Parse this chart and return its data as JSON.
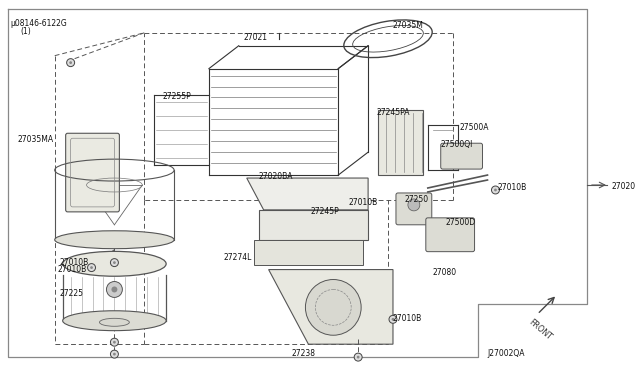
{
  "bg_color": "#ffffff",
  "line_color": "#333333",
  "dashed_color": "#555555",
  "text_color": "#111111",
  "diagram_id": "J27002QA",
  "figsize": [
    6.4,
    3.72
  ],
  "dpi": 100,
  "labels": {
    "bolt": "µ08146-6122G",
    "bolt_sub": "(1)",
    "27021": "27021",
    "27035M": "27035M",
    "27255P": "27255P",
    "27035MA": "27035MA",
    "27245PA": "27245PA",
    "27500A": "27500A",
    "27020BA": "27020BA",
    "27245P": "27245P",
    "27274L": "27274L",
    "27250": "27250",
    "27010B_1": "27010B",
    "27010B_2": "27010B",
    "27010B_3": "27010B",
    "27010B_4": "27010B",
    "27238": "27238",
    "27225": "27225",
    "27080": "27080",
    "27500D": "27500D",
    "27500QI": "27500QI",
    "27020": "27020",
    "FRONT": "FRONT",
    "diag_id": "J27002QA"
  }
}
